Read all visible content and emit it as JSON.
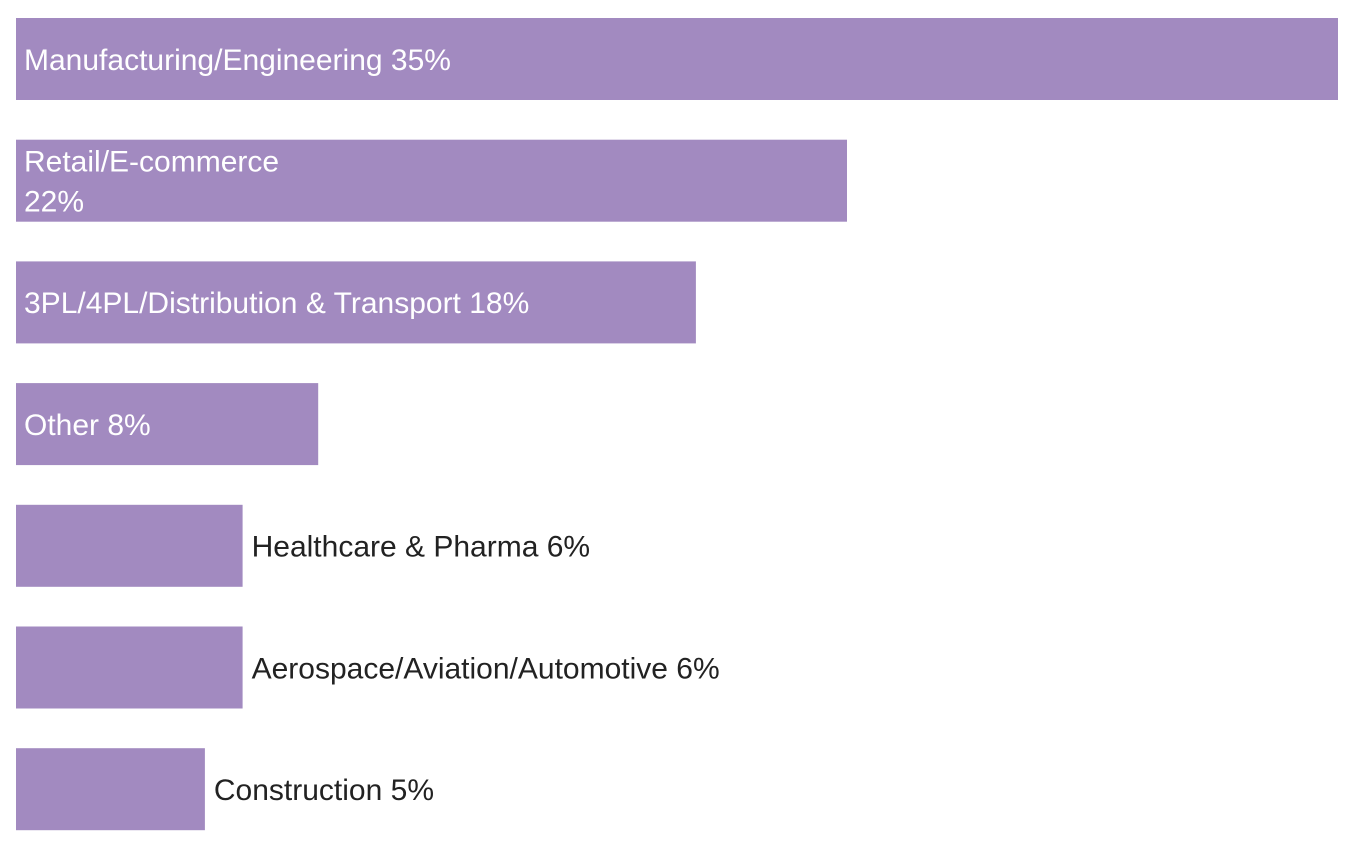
{
  "chart_data": {
    "type": "bar",
    "orientation": "horizontal",
    "categories": [
      "Manufacturing/Engineering",
      "Retail/E-commerce",
      "3PL/4PL/Distribution & Transport",
      "Other",
      "Healthcare & Pharma",
      "Aerospace/Aviation/Automotive",
      "Construction"
    ],
    "values": [
      35,
      22,
      18,
      8,
      6,
      6,
      5
    ],
    "value_suffix": "%",
    "labels": [
      "Manufacturing/Engineering 35%",
      [
        "Retail/E-commerce",
        "22%"
      ],
      "3PL/4PL/Distribution & Transport 18%",
      "Other 8%",
      "Healthcare & Pharma 6%",
      "Aerospace/Aviation/Automotive 6%",
      "Construction 5%"
    ],
    "label_position": [
      "inside",
      "inside",
      "inside",
      "inside",
      "outside",
      "outside",
      "outside"
    ],
    "xlim": [
      0,
      35
    ],
    "grid": false,
    "legend": "none",
    "colors": {
      "bar": "#a28ac0",
      "label_inside": "#ffffff",
      "label_outside": "#222222"
    }
  }
}
